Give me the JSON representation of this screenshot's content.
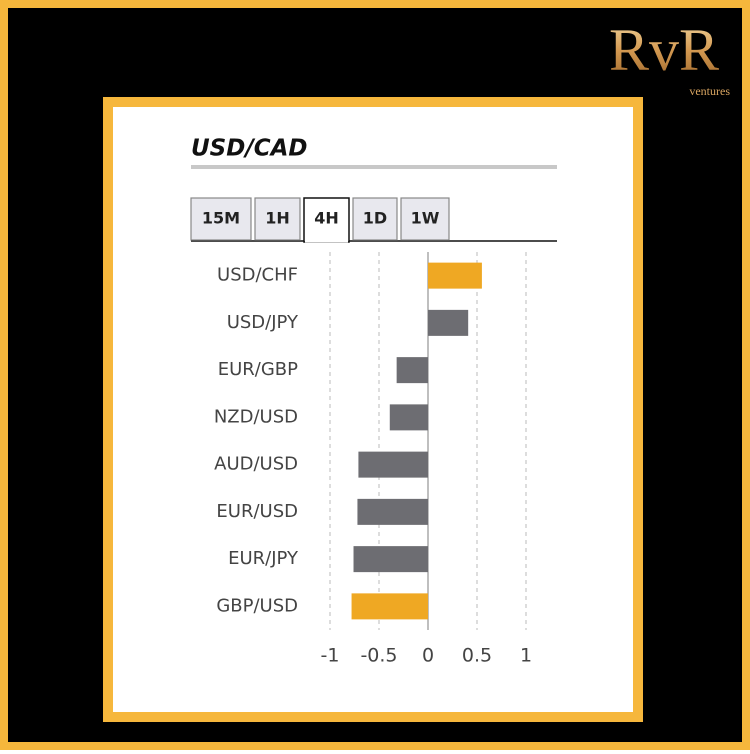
{
  "brand": {
    "name": "RvR",
    "tagline": "ventures"
  },
  "tabs": [
    "15M",
    "1H",
    "4H",
    "1D",
    "1W"
  ],
  "active_tab": 2,
  "chart_data": {
    "type": "bar",
    "orientation": "horizontal",
    "title": "USD/CAD",
    "categories": [
      "USD/CHF",
      "USD/JPY",
      "EUR/GBP",
      "NZD/USD",
      "AUD/USD",
      "EUR/USD",
      "EUR/JPY",
      "GBP/USD"
    ],
    "values": [
      0.55,
      0.41,
      -0.32,
      -0.39,
      -0.71,
      -0.72,
      -0.76,
      -0.78
    ],
    "colors": [
      "#efa823",
      "#6d6d72",
      "#6d6d72",
      "#6d6d72",
      "#6d6d72",
      "#6d6d72",
      "#6d6d72",
      "#efa823"
    ],
    "xlim": [
      -1,
      1
    ],
    "xticks": [
      -1,
      -0.5,
      0,
      0.5,
      1
    ],
    "grid": true
  }
}
